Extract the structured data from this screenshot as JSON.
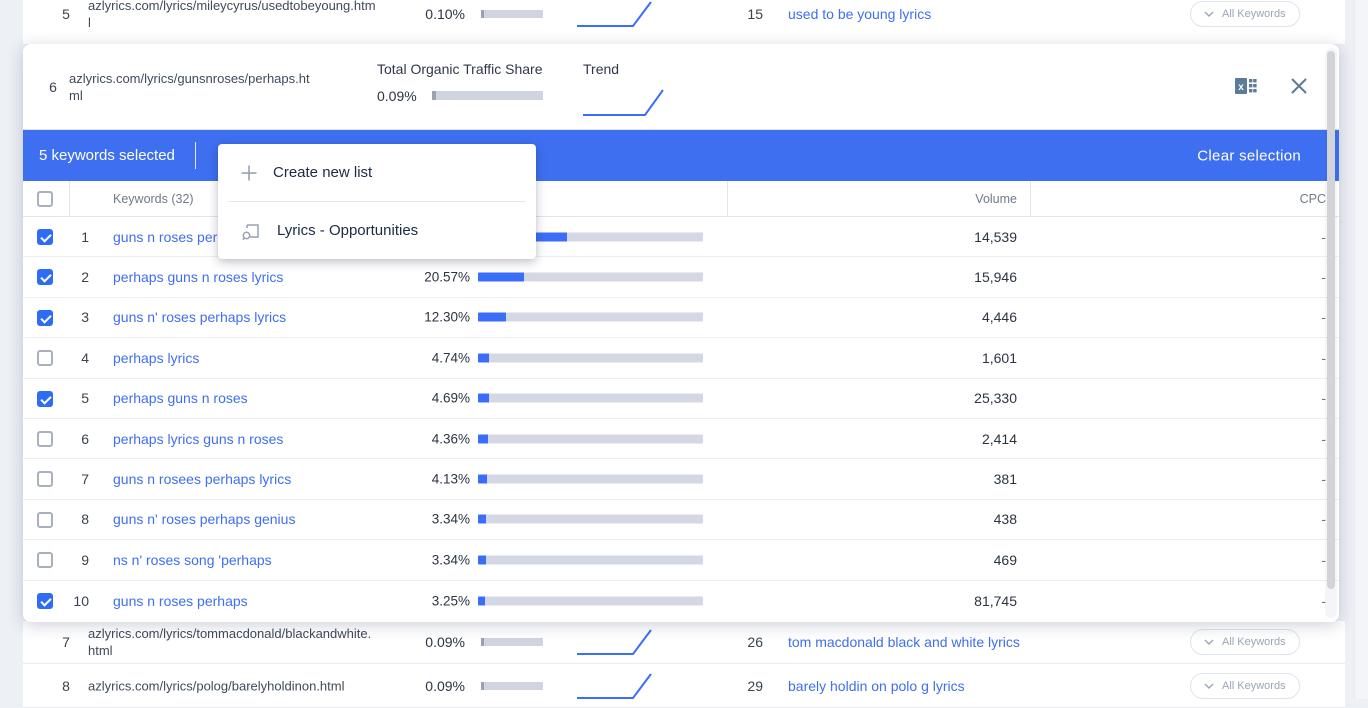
{
  "selection_bar": {
    "selected_text": "5 keywords selected",
    "clear_button": "Clear selection",
    "color": "#3e6ff0"
  },
  "detail_card": {
    "row_num": "6",
    "url": "azlyrics.com/lyrics/gunsnroses/perhaps.ht\nml",
    "traffic_share_label": "Total Organic Traffic Share",
    "traffic_share_value": "0.09%",
    "trend_label": "Trend",
    "export_icon": "excel-export",
    "close_icon": "close"
  },
  "dropdown_menu": {
    "items": [
      {
        "icon": "plus",
        "label": "Create new list"
      },
      {
        "icon": "keyword-list",
        "label": "Lyrics - Opportunities"
      }
    ]
  },
  "keyword_table": {
    "headers": {
      "keywords": "Keywords (32)",
      "volume": "Volume",
      "cpc": "CPC"
    },
    "rows": [
      {
        "num": "1",
        "checked": true,
        "keyword": "guns n roses per",
        "share_label": "",
        "share_pct": 39.7,
        "volume": "14,539",
        "cpc": "-"
      },
      {
        "num": "2",
        "checked": true,
        "keyword": "perhaps guns n roses lyrics",
        "share_label": "20.57%",
        "share_pct": 20.57,
        "volume": "15,946",
        "cpc": "-"
      },
      {
        "num": "3",
        "checked": true,
        "keyword": "guns n' roses perhaps lyrics",
        "share_label": "12.30%",
        "share_pct": 12.3,
        "volume": "4,446",
        "cpc": "-"
      },
      {
        "num": "4",
        "checked": false,
        "keyword": "perhaps lyrics",
        "share_label": "4.74%",
        "share_pct": 4.74,
        "volume": "1,601",
        "cpc": "-"
      },
      {
        "num": "5",
        "checked": true,
        "keyword": "perhaps guns n roses",
        "share_label": "4.69%",
        "share_pct": 4.69,
        "volume": "25,330",
        "cpc": "-"
      },
      {
        "num": "6",
        "checked": false,
        "keyword": "perhaps lyrics guns n roses",
        "share_label": "4.36%",
        "share_pct": 4.36,
        "volume": "2,414",
        "cpc": "-"
      },
      {
        "num": "7",
        "checked": false,
        "keyword": "guns n rosees perhaps lyrics",
        "share_label": "4.13%",
        "share_pct": 4.13,
        "volume": "381",
        "cpc": "-"
      },
      {
        "num": "8",
        "checked": false,
        "keyword": "guns n' roses perhaps genius",
        "share_label": "3.34%",
        "share_pct": 3.34,
        "volume": "438",
        "cpc": "-"
      },
      {
        "num": "9",
        "checked": false,
        "keyword": "ns n' roses song 'perhaps",
        "share_label": "3.34%",
        "share_pct": 3.34,
        "volume": "469",
        "cpc": "-"
      },
      {
        "num": "10",
        "checked": true,
        "keyword": "guns n roses perhaps",
        "share_label": "3.25%",
        "share_pct": 3.25,
        "volume": "81,745",
        "cpc": "-"
      }
    ]
  },
  "background_table": {
    "all_keywords_label": "All Keywords",
    "rows": [
      {
        "num": "5",
        "url": "azlyrics.com/lyrics/mileycyrus/usedtobeyoung.htm\nl",
        "traffic_share": "0.10%",
        "keyword_rank": "15",
        "keyword": "used to be young lyrics"
      },
      {
        "num": "7",
        "url": "azlyrics.com/lyrics/tommacdonald/blackandwhite.\nhtml",
        "traffic_share": "0.09%",
        "keyword_rank": "26",
        "keyword": "tom macdonald black and white lyrics"
      },
      {
        "num": "8",
        "url": "azlyrics.com/lyrics/polog/barelyholdinon.html",
        "traffic_share": "0.09%",
        "keyword_rank": "29",
        "keyword": "barely holdin on polo g lyrics"
      }
    ]
  },
  "colors": {
    "accent_blue": "#3b6ef8",
    "selection_bar_blue": "#3e6ff0",
    "icon_slate": "#5c7b99"
  }
}
